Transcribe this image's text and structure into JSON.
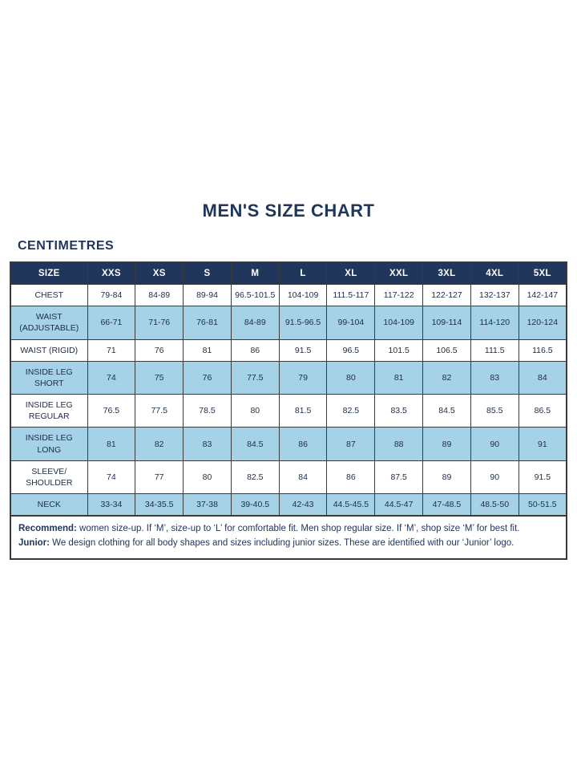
{
  "page": {
    "title": "MEN'S SIZE CHART",
    "unit_label": "CENTIMETRES"
  },
  "colors": {
    "navy": "#21365b",
    "light_blue": "#a5d2e7",
    "cell_text": "#1d2c47",
    "border": "#3a3a3a",
    "background": "#ffffff"
  },
  "table": {
    "columns": [
      "SIZE",
      "XXS",
      "XS",
      "S",
      "M",
      "L",
      "XL",
      "XXL",
      "3XL",
      "4XL",
      "5XL"
    ],
    "rows": [
      {
        "label": "CHEST",
        "values": [
          "79-84",
          "84-89",
          "89-94",
          "96.5-101.5",
          "104-109",
          "111.5-117",
          "117-122",
          "122-127",
          "132-137",
          "142-147"
        ]
      },
      {
        "label": "WAIST\n(ADJUSTABLE)",
        "values": [
          "66-71",
          "71-76",
          "76-81",
          "84-89",
          "91.5-96.5",
          "99-104",
          "104-109",
          "109-114",
          "114-120",
          "120-124"
        ]
      },
      {
        "label": "WAIST (RIGID)",
        "values": [
          "71",
          "76",
          "81",
          "86",
          "91.5",
          "96.5",
          "101.5",
          "106.5",
          "111.5",
          "116.5"
        ]
      },
      {
        "label": "INSIDE LEG\nSHORT",
        "values": [
          "74",
          "75",
          "76",
          "77.5",
          "79",
          "80",
          "81",
          "82",
          "83",
          "84"
        ]
      },
      {
        "label": "INSIDE LEG\nREGULAR",
        "values": [
          "76.5",
          "77.5",
          "78.5",
          "80",
          "81.5",
          "82.5",
          "83.5",
          "84.5",
          "85.5",
          "86.5"
        ]
      },
      {
        "label": "INSIDE LEG\nLONG",
        "values": [
          "81",
          "82",
          "83",
          "84.5",
          "86",
          "87",
          "88",
          "89",
          "90",
          "91"
        ]
      },
      {
        "label": "SLEEVE/\nSHOULDER",
        "values": [
          "74",
          "77",
          "80",
          "82.5",
          "84",
          "86",
          "87.5",
          "89",
          "90",
          "91.5"
        ]
      },
      {
        "label": "NECK",
        "values": [
          "33-34",
          "34-35.5",
          "37-38",
          "39-40.5",
          "42-43",
          "44.5-45.5",
          "44.5-47",
          "47-48.5",
          "48.5-50",
          "50-51.5"
        ]
      }
    ],
    "footnotes": [
      {
        "bold": "Recommend:",
        "text": " women size-up. If ‘M’, size-up to ‘L’ for comfortable fit. Men shop regular size. If ‘M’, shop size ‘M’ for best fit."
      },
      {
        "bold": "Junior:",
        "text": " We design clothing for all body shapes and sizes including junior sizes. These are identified with our ‘Junior’ logo."
      }
    ]
  }
}
